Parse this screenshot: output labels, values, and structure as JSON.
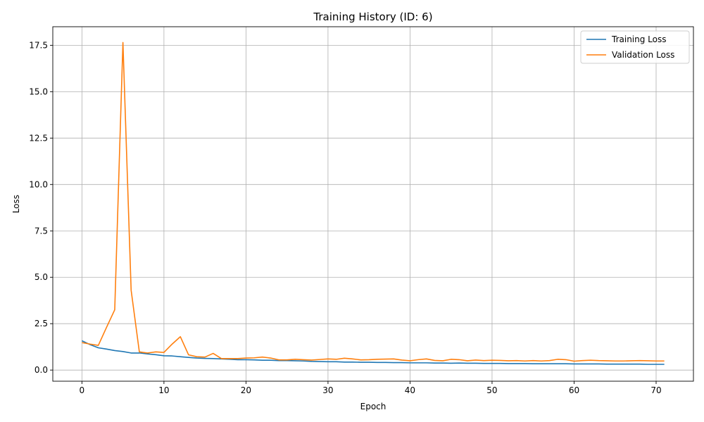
{
  "chart_data": {
    "type": "line",
    "title": "Training History (ID: 6)",
    "xlabel": "Epoch",
    "ylabel": "Loss",
    "xlim": [
      -3.55,
      74.55
    ],
    "ylim": [
      -0.6,
      18.5
    ],
    "xticks": [
      0,
      10,
      20,
      30,
      40,
      50,
      60,
      70
    ],
    "yticks": [
      0.0,
      2.5,
      5.0,
      7.5,
      10.0,
      12.5,
      15.0,
      17.5
    ],
    "ytick_labels": [
      "0.0",
      "2.5",
      "5.0",
      "7.5",
      "10.0",
      "12.5",
      "15.0",
      "17.5"
    ],
    "grid": true,
    "legend": "top-right",
    "series": [
      {
        "name": "Training Loss",
        "color": "#1f77b4",
        "x": [
          0,
          1,
          2,
          3,
          4,
          5,
          6,
          7,
          8,
          9,
          10,
          11,
          12,
          13,
          14,
          15,
          16,
          17,
          18,
          19,
          20,
          21,
          22,
          23,
          24,
          25,
          26,
          27,
          28,
          29,
          30,
          31,
          32,
          33,
          34,
          35,
          36,
          37,
          38,
          39,
          40,
          41,
          42,
          43,
          44,
          45,
          46,
          47,
          48,
          49,
          50,
          51,
          52,
          53,
          54,
          55,
          56,
          57,
          58,
          59,
          60,
          61,
          62,
          63,
          64,
          65,
          66,
          67,
          68,
          69,
          70,
          71
        ],
        "y": [
          1.58,
          1.37,
          1.2,
          1.13,
          1.05,
          1.0,
          0.92,
          0.92,
          0.87,
          0.83,
          0.77,
          0.76,
          0.72,
          0.68,
          0.65,
          0.63,
          0.62,
          0.6,
          0.58,
          0.56,
          0.56,
          0.55,
          0.53,
          0.53,
          0.51,
          0.51,
          0.5,
          0.49,
          0.47,
          0.46,
          0.45,
          0.45,
          0.43,
          0.43,
          0.42,
          0.42,
          0.41,
          0.41,
          0.4,
          0.4,
          0.39,
          0.39,
          0.39,
          0.38,
          0.38,
          0.37,
          0.38,
          0.37,
          0.37,
          0.36,
          0.36,
          0.36,
          0.35,
          0.35,
          0.35,
          0.34,
          0.34,
          0.34,
          0.34,
          0.34,
          0.33,
          0.33,
          0.33,
          0.33,
          0.32,
          0.32,
          0.32,
          0.32,
          0.32,
          0.31,
          0.31,
          0.31
        ]
      },
      {
        "name": "Validation Loss",
        "color": "#ff7f0e",
        "x": [
          0,
          1,
          2,
          3,
          4,
          5,
          6,
          7,
          8,
          9,
          10,
          11,
          12,
          13,
          14,
          15,
          16,
          17,
          18,
          19,
          20,
          21,
          22,
          23,
          24,
          25,
          26,
          27,
          28,
          29,
          30,
          31,
          32,
          33,
          34,
          35,
          36,
          37,
          38,
          39,
          40,
          41,
          42,
          43,
          44,
          45,
          46,
          47,
          48,
          49,
          50,
          51,
          52,
          53,
          54,
          55,
          56,
          57,
          58,
          59,
          60,
          61,
          62,
          63,
          64,
          65,
          66,
          67,
          68,
          69,
          70,
          71
        ],
        "y": [
          1.48,
          1.4,
          1.33,
          2.3,
          3.25,
          17.65,
          4.3,
          0.98,
          0.92,
          0.98,
          0.95,
          1.4,
          1.8,
          0.82,
          0.72,
          0.7,
          0.9,
          0.62,
          0.62,
          0.62,
          0.65,
          0.66,
          0.7,
          0.65,
          0.55,
          0.55,
          0.58,
          0.56,
          0.54,
          0.57,
          0.6,
          0.58,
          0.64,
          0.6,
          0.55,
          0.56,
          0.58,
          0.59,
          0.6,
          0.54,
          0.5,
          0.56,
          0.6,
          0.52,
          0.5,
          0.58,
          0.56,
          0.5,
          0.54,
          0.51,
          0.53,
          0.52,
          0.5,
          0.51,
          0.49,
          0.51,
          0.49,
          0.51,
          0.58,
          0.56,
          0.48,
          0.51,
          0.53,
          0.51,
          0.5,
          0.49,
          0.49,
          0.5,
          0.51,
          0.5,
          0.49,
          0.49
        ]
      }
    ]
  }
}
